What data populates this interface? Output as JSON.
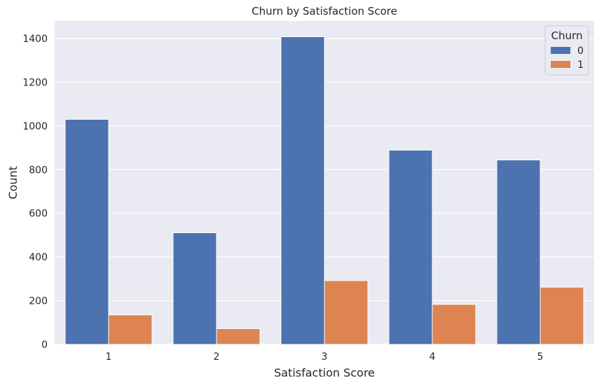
{
  "chart_data": {
    "type": "bar",
    "title": "Churn by Satisfaction Score",
    "xlabel": "Satisfaction Score",
    "ylabel": "Count",
    "categories": [
      "1",
      "2",
      "3",
      "4",
      "5"
    ],
    "series": [
      {
        "name": "0",
        "values": [
          1030,
          511,
          1408,
          889,
          844
        ],
        "color": "#4c72b0"
      },
      {
        "name": "1",
        "values": [
          135,
          72,
          292,
          183,
          262
        ],
        "color": "#dd8452"
      }
    ],
    "ylim": [
      0,
      1480
    ],
    "yticks": [
      0,
      200,
      400,
      600,
      800,
      1000,
      1200,
      1400
    ],
    "grid": true,
    "legend": {
      "title": "Churn",
      "placement": "top-right"
    },
    "plot_background": "#eaeaf2"
  }
}
